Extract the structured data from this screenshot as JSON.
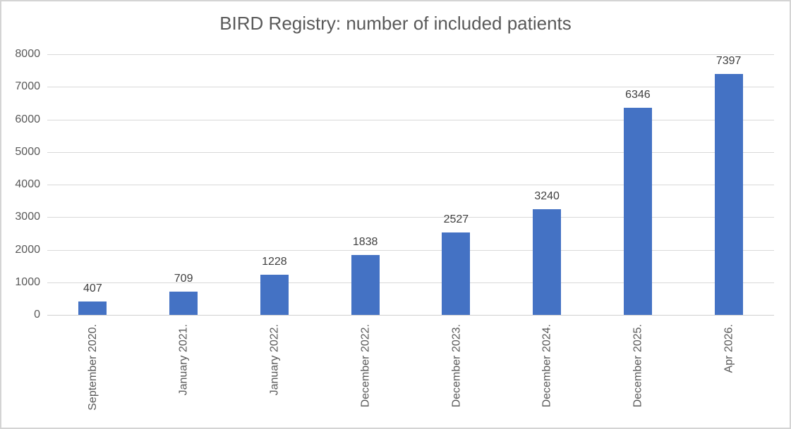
{
  "title": "BIRD Registry: number of included patients",
  "chart_data": {
    "type": "bar",
    "title": "BIRD Registry: number of included patients",
    "categories": [
      "September 2020.",
      "January 2021.",
      "January 2022.",
      "December 2022.",
      "December 2023.",
      "December 2024.",
      "December 2025.",
      "Apr 2026."
    ],
    "values": [
      407,
      709,
      1228,
      1838,
      2527,
      3240,
      6346,
      7397
    ],
    "data_labels": [
      "407",
      "709",
      "1228",
      "1838",
      "2527",
      "3240",
      "6346",
      "7397"
    ],
    "xlabel": "",
    "ylabel": "",
    "ylim": [
      0,
      8000
    ],
    "yticks": [
      0,
      1000,
      2000,
      3000,
      4000,
      5000,
      6000,
      7000,
      8000
    ],
    "grid": true,
    "legend_position": "none",
    "colors": {
      "bar": "#4472C4",
      "gridline": "#d9d9d9",
      "title_text": "#595959",
      "axis_text": "#595959",
      "data_label_text": "#404040",
      "frame_border": "#d4d4d4",
      "background": "#ffffff"
    }
  }
}
